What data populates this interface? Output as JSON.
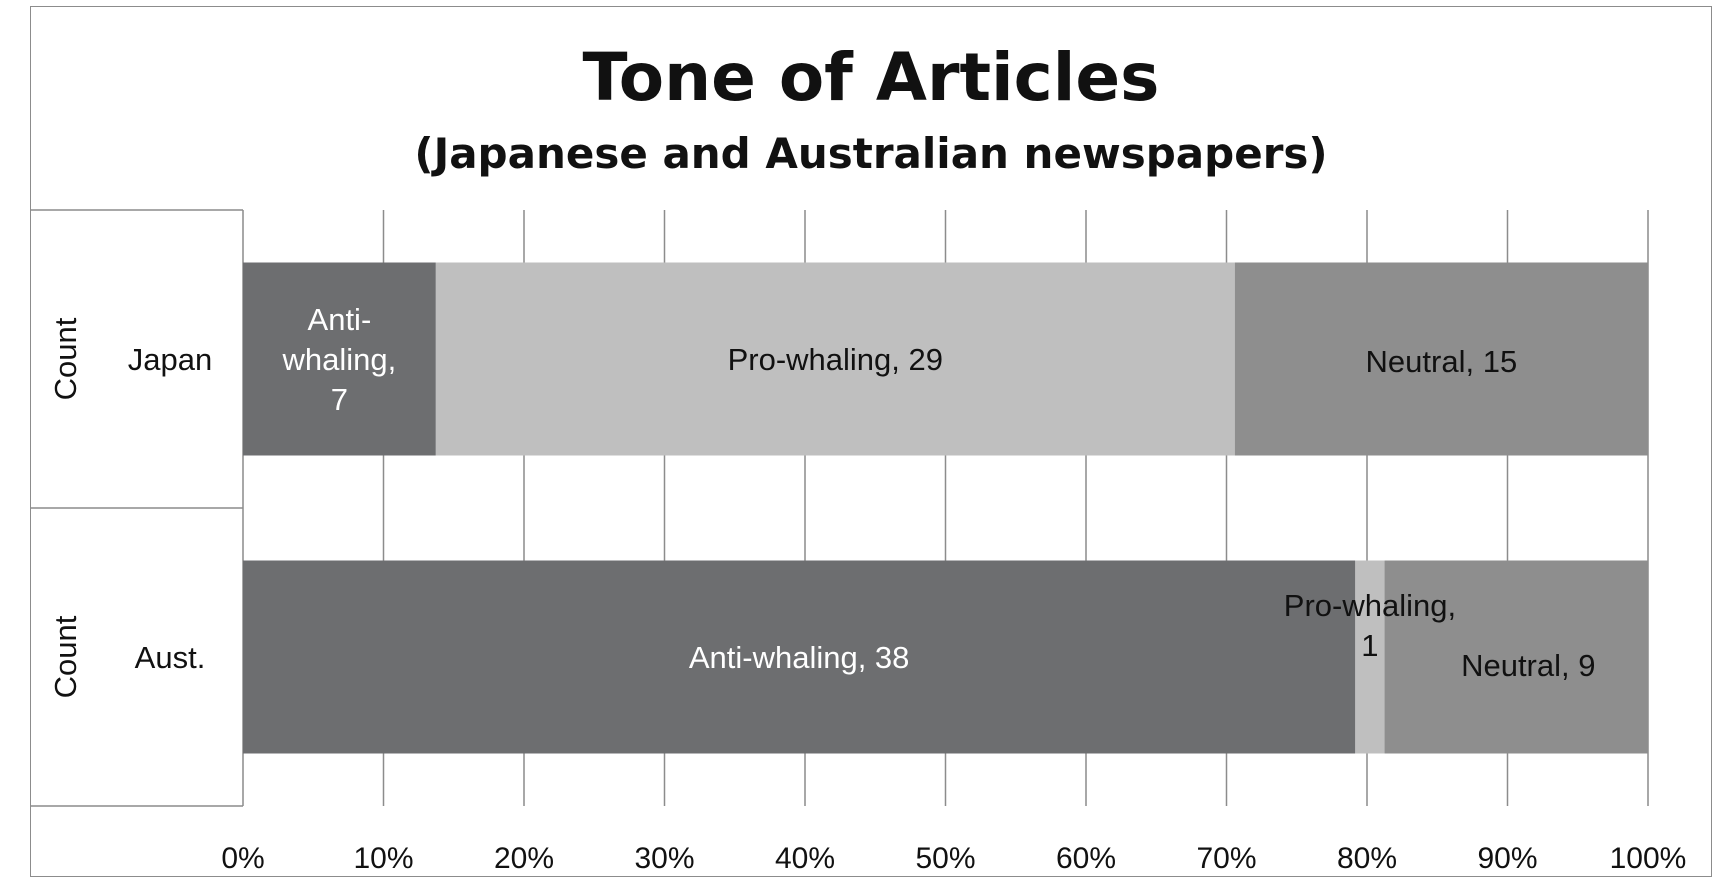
{
  "chart_data": {
    "type": "bar",
    "orientation": "horizontal",
    "stacking": "percent",
    "title": "Tone of Articles",
    "subtitle": "(Japanese and Australian newspapers)",
    "group_label": "Count",
    "categories": [
      "Japan",
      "Aust."
    ],
    "series": [
      {
        "name": "Anti-whaling",
        "values": [
          7,
          38
        ],
        "color": "#6d6e70"
      },
      {
        "name": "Pro-whaling",
        "values": [
          29,
          1
        ],
        "color": "#bfbfbf"
      },
      {
        "name": "Neutral",
        "values": [
          15,
          9
        ],
        "color": "#8e8e8e"
      }
    ],
    "data_labels": [
      [
        "Anti-\nwhaling,\n7",
        "Pro-whaling, 29",
        "Neutral, 15"
      ],
      [
        "Anti-whaling, 38",
        "Pro-whaling,\n1",
        "Neutral, 9"
      ]
    ],
    "xlim": [
      0,
      100
    ],
    "x_ticks": [
      "0%",
      "10%",
      "20%",
      "30%",
      "40%",
      "50%",
      "60%",
      "70%",
      "80%",
      "90%",
      "100%"
    ],
    "grid": true,
    "legend": "none"
  }
}
